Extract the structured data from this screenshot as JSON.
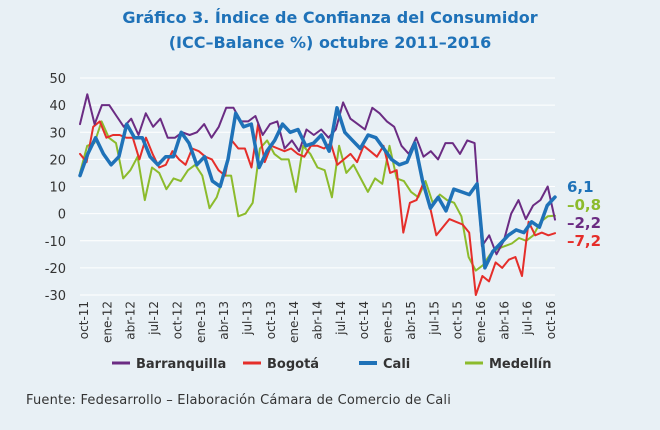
{
  "title_line1": "Gráfico 3. Índice de Confianza del Consumidor",
  "title_line2": "(ICC–Balance %) octubre 2011–2016",
  "source": "Fuente: Fedesarrollo – Elaboración Cámara de Comercio de Cali",
  "chart_data": {
    "type": "line",
    "ylim": [
      -30,
      50
    ],
    "yticks": [
      -30,
      -20,
      -10,
      0,
      10,
      20,
      30,
      40,
      50
    ],
    "grid": true,
    "legend_position": "bottom",
    "xtick_labels": [
      "oct-11",
      "ene-12",
      "abr-12",
      "jul-12",
      "oct-12",
      "ene-13",
      "abr-13",
      "jul-13",
      "oct-13",
      "ene-14",
      "abr-14",
      "jul-14",
      "oct-14",
      "ene-15",
      "abr-15",
      "jul-15",
      "oct-15",
      "ene-16",
      "abr-16",
      "jul-16",
      "oct-16"
    ],
    "end_labels": [
      {
        "series": "Cali",
        "text": "6,1",
        "color": "#1f72b8"
      },
      {
        "series": "Medellín",
        "text": "–0,8",
        "color": "#8cbb2c"
      },
      {
        "series": "Barranquilla",
        "text": "–2,2",
        "color": "#6b2c83"
      },
      {
        "series": "Bogotá",
        "text": "–7,2",
        "color": "#e52e2a"
      }
    ],
    "series": [
      {
        "name": "Barranquilla",
        "color": "#6b2c83",
        "width": 2,
        "values": [
          33,
          44,
          33,
          40,
          40,
          36,
          32,
          35,
          29,
          37,
          32,
          35,
          28,
          28,
          30,
          29,
          30,
          33,
          28,
          32,
          39,
          39,
          34,
          34,
          36,
          29,
          33,
          34,
          24,
          27,
          23,
          31,
          29,
          31,
          28,
          31,
          41,
          35,
          33,
          31,
          39,
          37,
          34,
          32,
          25,
          22,
          28,
          21,
          23,
          20,
          26,
          26,
          22,
          27,
          26,
          -12,
          -8,
          -15,
          -10,
          0,
          5,
          -2,
          3,
          5,
          10,
          -2.2
        ]
      },
      {
        "name": "Bogotá",
        "color": "#e52e2a",
        "width": 2,
        "values": [
          22,
          19,
          32,
          34,
          28,
          29,
          29,
          28,
          28,
          20,
          28,
          22,
          17,
          18,
          23,
          20,
          18,
          24,
          23,
          21,
          20,
          16,
          14,
          27,
          24,
          24,
          17,
          33,
          19,
          25,
          24,
          23,
          24,
          22,
          21,
          25,
          25,
          24,
          26,
          18,
          20,
          22,
          19,
          25,
          23,
          21,
          25,
          15,
          16,
          -7,
          4,
          5,
          11,
          3,
          -8,
          -5,
          -2,
          -3,
          -4,
          -7,
          -30,
          -23,
          -25,
          -18,
          -20,
          -17,
          -16,
          -23,
          -3,
          -8,
          -7,
          -8,
          -7.2
        ]
      },
      {
        "name": "Cali",
        "color": "#1f72b8",
        "width": 3.5,
        "values": [
          14,
          22,
          28,
          22,
          18,
          21,
          33,
          28,
          28,
          21,
          18,
          21,
          21,
          30,
          26,
          18,
          21,
          12,
          10,
          20,
          37,
          32,
          33,
          17,
          23,
          27,
          33,
          30,
          31,
          25,
          26,
          29,
          23,
          39,
          30,
          27,
          24,
          29,
          28,
          24,
          20,
          18,
          19,
          26,
          12,
          2,
          6,
          1,
          9,
          8,
          7,
          11,
          -20,
          -14,
          -11,
          -8,
          -6,
          -7,
          -3,
          -5,
          3,
          6.1
        ]
      },
      {
        "name": "Medellín",
        "color": "#8cbb2c",
        "width": 2,
        "values": [
          15,
          25,
          26,
          34,
          28,
          26,
          13,
          16,
          21,
          5,
          17,
          15,
          9,
          13,
          12,
          16,
          18,
          14,
          2,
          6,
          14,
          14,
          -1,
          0,
          4,
          24,
          27,
          22,
          20,
          20,
          8,
          25,
          22,
          17,
          16,
          6,
          25,
          15,
          18,
          13,
          8,
          13,
          11,
          25,
          13,
          12,
          8,
          6,
          12,
          4,
          7,
          5,
          4,
          -1,
          -16,
          -21,
          -19,
          -15,
          -13,
          -12,
          -11,
          -9,
          -10,
          -8,
          -3,
          -1,
          -0.8
        ]
      }
    ]
  }
}
